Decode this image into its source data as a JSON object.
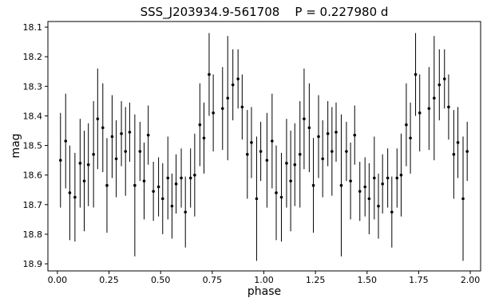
{
  "chart_data": {
    "type": "errorbar",
    "title": "SSS_J203934.9-561708    P = 0.227980 d",
    "x_label": "phase",
    "y_label": "mag",
    "color": "#000000",
    "y_inverted": true,
    "xlim": [
      -0.046,
      2.05
    ],
    "ylim": [
      18.924,
      18.081
    ],
    "xticks": [
      {
        "value": 0,
        "label": "0.00"
      },
      {
        "value": 0.25,
        "label": "0.25"
      },
      {
        "value": 0.5,
        "label": "0.50"
      },
      {
        "value": 0.75,
        "label": "0.75"
      },
      {
        "value": 1,
        "label": "1.00"
      },
      {
        "value": 1.25,
        "label": "1.25"
      },
      {
        "value": 1.5,
        "label": "1.50"
      },
      {
        "value": 1.75,
        "label": "1.75"
      },
      {
        "value": 2,
        "label": "2.00"
      }
    ],
    "yticks": [
      18.1,
      18.2,
      18.3,
      18.4,
      18.5,
      18.6,
      18.7,
      18.8,
      18.9
    ],
    "x": [
      0.015,
      0.04,
      0.06,
      0.085,
      0.11,
      0.13,
      0.15,
      0.175,
      0.195,
      0.22,
      0.24,
      0.265,
      0.285,
      0.31,
      0.33,
      0.35,
      0.375,
      0.4,
      0.42,
      0.44,
      0.465,
      0.49,
      0.51,
      0.535,
      0.555,
      0.575,
      0.6,
      0.62,
      0.645,
      0.665,
      0.69,
      0.71,
      0.735,
      0.755,
      0.8,
      0.825,
      0.85,
      0.875,
      0.895,
      0.92,
      0.94,
      0.965,
      0.985,
      1.015,
      1.04,
      1.06,
      1.085,
      1.11,
      1.13,
      1.15,
      1.175,
      1.195,
      1.22,
      1.24,
      1.265,
      1.285,
      1.31,
      1.33,
      1.35,
      1.375,
      1.4,
      1.42,
      1.44,
      1.465,
      1.49,
      1.51,
      1.535,
      1.555,
      1.575,
      1.6,
      1.62,
      1.645,
      1.665,
      1.69,
      1.71,
      1.735,
      1.755,
      1.8,
      1.825,
      1.85,
      1.875,
      1.895,
      1.92,
      1.94,
      1.965,
      1.985
    ],
    "values": [
      18.55,
      18.485,
      18.66,
      18.675,
      18.56,
      18.62,
      18.565,
      18.53,
      18.41,
      18.44,
      18.635,
      18.47,
      18.545,
      18.46,
      18.52,
      18.455,
      18.635,
      18.52,
      18.62,
      18.465,
      18.655,
      18.64,
      18.68,
      18.61,
      18.705,
      18.63,
      18.61,
      18.725,
      18.61,
      18.6,
      18.43,
      18.475,
      18.26,
      18.39,
      18.375,
      18.34,
      18.295,
      18.275,
      18.37,
      18.53,
      18.49,
      18.68,
      18.52,
      18.55,
      18.485,
      18.66,
      18.675,
      18.56,
      18.62,
      18.565,
      18.53,
      18.41,
      18.44,
      18.635,
      18.47,
      18.545,
      18.46,
      18.52,
      18.455,
      18.635,
      18.52,
      18.62,
      18.465,
      18.655,
      18.64,
      18.68,
      18.61,
      18.705,
      18.63,
      18.61,
      18.725,
      18.61,
      18.6,
      18.43,
      18.475,
      18.26,
      18.39,
      18.375,
      18.34,
      18.295,
      18.275,
      18.37,
      18.53,
      18.49,
      18.68,
      18.52
    ],
    "errors": [
      0.16,
      0.16,
      0.16,
      0.15,
      0.15,
      0.17,
      0.14,
      0.18,
      0.17,
      0.15,
      0.16,
      0.14,
      0.13,
      0.11,
      0.15,
      0.1,
      0.24,
      0.1,
      0.13,
      0.1,
      0.1,
      0.1,
      0.12,
      0.14,
      0.11,
      0.1,
      0.1,
      0.12,
      0.1,
      0.14,
      0.14,
      0.12,
      0.14,
      0.13,
      0.14,
      0.21,
      0.12,
      0.1,
      0.11,
      0.15,
      0.12,
      0.21,
      0.1,
      0.16,
      0.16,
      0.16,
      0.15,
      0.15,
      0.17,
      0.14,
      0.18,
      0.17,
      0.15,
      0.16,
      0.14,
      0.13,
      0.11,
      0.15,
      0.1,
      0.24,
      0.1,
      0.13,
      0.1,
      0.1,
      0.1,
      0.12,
      0.14,
      0.11,
      0.1,
      0.1,
      0.12,
      0.1,
      0.14,
      0.14,
      0.12,
      0.14,
      0.13,
      0.14,
      0.21,
      0.12,
      0.1,
      0.11,
      0.15,
      0.12,
      0.21,
      0.1
    ]
  }
}
